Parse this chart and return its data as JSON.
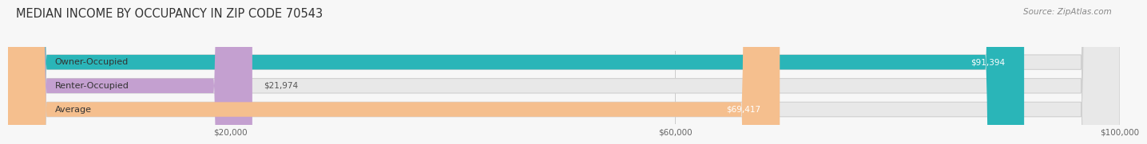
{
  "title": "MEDIAN INCOME BY OCCUPANCY IN ZIP CODE 70543",
  "source": "Source: ZipAtlas.com",
  "categories": [
    "Owner-Occupied",
    "Renter-Occupied",
    "Average"
  ],
  "values": [
    91394,
    21974,
    69417
  ],
  "bar_colors": [
    "#2ab5b8",
    "#c4a0d0",
    "#f5bf8e"
  ],
  "bar_bg_color": "#e8e8e8",
  "label_values": [
    "$91,394",
    "$21,974",
    "$69,417"
  ],
  "xlim": [
    0,
    100000
  ],
  "xticks": [
    20000,
    60000,
    100000
  ],
  "xtick_labels": [
    "$20,000",
    "$60,000",
    "$100,000"
  ],
  "title_fontsize": 10.5,
  "source_fontsize": 7.5,
  "bar_label_fontsize": 7.5,
  "category_label_fontsize": 8,
  "bar_height": 0.62,
  "background_color": "#f7f7f7",
  "value_label_color": "#ffffff",
  "renter_label_color": "#888888"
}
